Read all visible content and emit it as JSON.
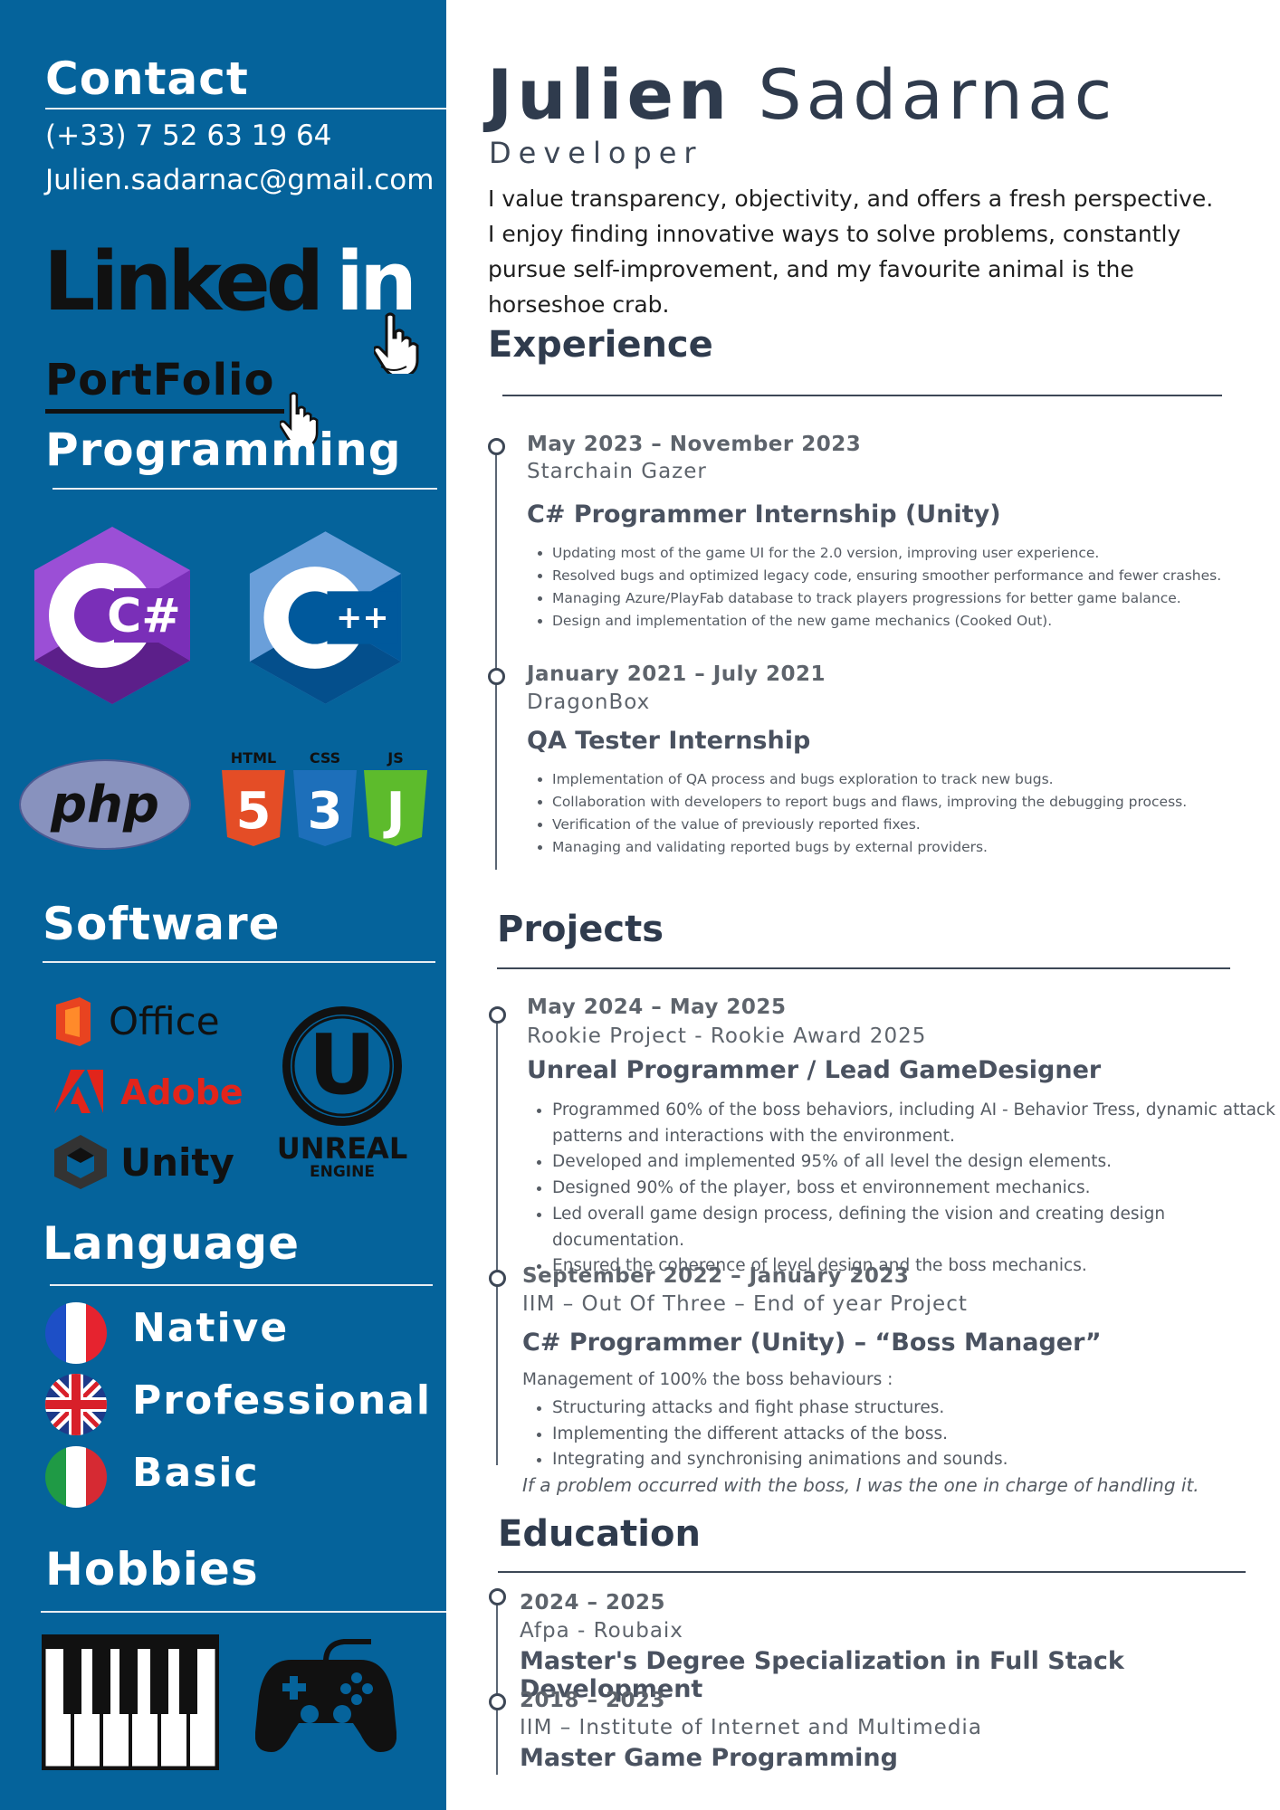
{
  "sidebar": {
    "contact": {
      "heading": "Contact",
      "phone": "(+33) 7 52 63 19 64",
      "email": "Julien.sadarnac@gmail.com"
    },
    "linkedin": {
      "text_a": "Linked",
      "text_b": "in"
    },
    "portfolio": "PortFolio",
    "programming": {
      "heading": "Programming",
      "logos": [
        "C#",
        "C++",
        "php",
        "HTML",
        "CSS",
        "JS",
        "5",
        "3"
      ]
    },
    "software": {
      "heading": "Software",
      "items": [
        "Office",
        "Adobe",
        "Unity"
      ],
      "unreal": {
        "line1": "UNREAL",
        "line2": "ENGINE"
      }
    },
    "language": {
      "heading": "Language",
      "items": [
        {
          "level": "Native",
          "flag": "fr-flag"
        },
        {
          "level": "Professional",
          "flag": "uk-flag"
        },
        {
          "level": "Basic",
          "flag": "it-flag"
        }
      ]
    },
    "hobbies": {
      "heading": "Hobbies",
      "icons": [
        "piano-icon",
        "gamepad-icon"
      ]
    }
  },
  "header": {
    "first_name": "Julien",
    "last_name": "Sadarnac",
    "title": "Developer",
    "about": [
      "I value transparency, objectivity, and offers a fresh perspective.",
      "I enjoy finding innovative ways to solve problems, constantly",
      "pursue self-improvement, and my favourite animal is the",
      "horseshoe crab."
    ]
  },
  "experience": {
    "heading": "Experience",
    "items": [
      {
        "date": "May 2023 – November 2023",
        "org": "Starchain Gazer",
        "role": "C# Programmer Internship (Unity)",
        "bullets": [
          "Updating most of the game UI for the 2.0 version, improving user experience.",
          "Resolved bugs and optimized legacy code, ensuring smoother performance and fewer crashes.",
          "Managing Azure/PlayFab database to track players progressions for better game balance.",
          "Design and implementation of the new game mechanics (Cooked Out)."
        ]
      },
      {
        "date": "January 2021 – July 2021",
        "org": "DragonBox",
        "role": "QA Tester Internship",
        "bullets": [
          "Implementation of QA process and bugs exploration to track new bugs.",
          "Collaboration with developers to report bugs and flaws, improving the debugging process.",
          "Verification of the value of previously reported fixes.",
          "Managing and validating reported bugs by external providers."
        ]
      }
    ]
  },
  "projects": {
    "heading": "Projects",
    "items": [
      {
        "date": "May 2024 – May 2025",
        "org": "Rookie Project - Rookie Award 2025",
        "role": "Unreal Programmer / Lead GameDesigner",
        "bullets": [
          "Programmed 60% of the boss behaviors, including AI - Behavior Tress, dynamic attack",
          "patterns and interactions with the environment.",
          "Developed and implemented 95% of all level the design elements.",
          "Designed 90% of the player, boss et environnement mechanics.",
          "Led overall game design process, defining the vision and creating design documentation.",
          "Ensured the coherence of level design and the boss mechanics."
        ]
      },
      {
        "date": "September 2022 – January 2023",
        "org": "IIM – Out Of Three – End of year Project",
        "role": "C# Programmer (Unity) – “Boss Manager”",
        "intro": "Management of 100% the boss behaviours :",
        "bullets": [
          "Structuring attacks and fight phase structures.",
          "Implementing the different attacks of the boss.",
          "Integrating and synchronising animations and sounds."
        ],
        "note": "If a problem occurred with the boss, I was the one in charge of handling it."
      }
    ]
  },
  "education": {
    "heading": "Education",
    "items": [
      {
        "date": "2024 – 2025",
        "org": "Afpa - Roubaix",
        "degree": "Master's Degree Specialization in Full Stack Development"
      },
      {
        "date": "2018 – 2023",
        "org": "IIM – Institute of Internet and Multimedia",
        "degree": "Master Game Programming"
      }
    ]
  },
  "colors": {
    "sidebar": "#05639b",
    "heading": "#2f3b4d",
    "text": "#555b63"
  }
}
